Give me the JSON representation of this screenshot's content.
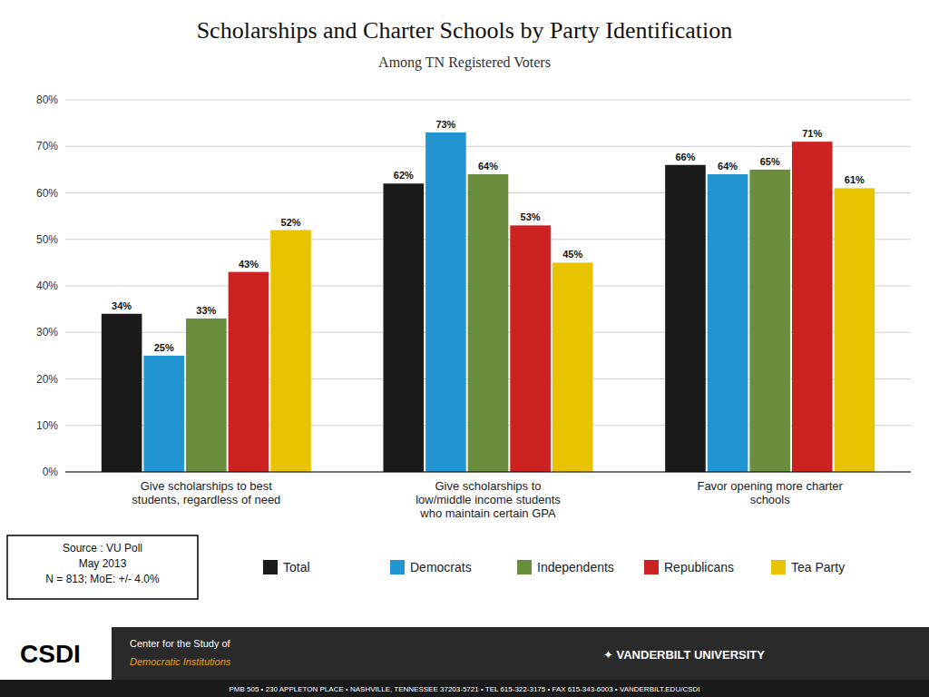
{
  "chart_data": {
    "type": "bar",
    "title": "Scholarships and Charter Schools by Party Identification",
    "subtitle": "Among TN Registered Voters",
    "categories": [
      "Give scholarships to best\nstudents, regardless of need",
      "Give scholarships to\nlow/middle income students\nwho maintain certain GPA",
      "Favor opening more charter\nschools"
    ],
    "series": [
      {
        "name": "Total",
        "color": "#1a1a1a",
        "values": [
          34,
          62,
          66
        ],
        "value_labels": [
          "34%",
          "62%",
          "66%"
        ]
      },
      {
        "name": "Democrats",
        "color": "#2196d3",
        "values": [
          25,
          73,
          64
        ],
        "value_labels": [
          "25%",
          "73%",
          "64%"
        ]
      },
      {
        "name": "Independents",
        "color": "#6b8e3e",
        "values": [
          33,
          64,
          65
        ],
        "value_labels": [
          "33%",
          "64%",
          "65%"
        ]
      },
      {
        "name": "Republicans",
        "color": "#cc2222",
        "values": [
          43,
          53,
          71
        ],
        "value_labels": [
          "43%",
          "53%",
          "71%"
        ]
      },
      {
        "name": "Tea Party",
        "color": "#e8c400",
        "values": [
          52,
          45,
          61
        ],
        "value_labels": [
          "52%",
          "45%",
          "61%"
        ]
      }
    ],
    "ylim": [
      0,
      80
    ],
    "yticks": [
      {
        "value": 0,
        "label": "0%"
      },
      {
        "value": 10,
        "label": "10%"
      },
      {
        "value": 20,
        "label": "20%"
      },
      {
        "value": 30,
        "label": "30%"
      },
      {
        "value": 40,
        "label": "40%"
      },
      {
        "value": 50,
        "label": "50%"
      },
      {
        "value": 60,
        "label": "60%"
      },
      {
        "value": 70,
        "label": "70%"
      },
      {
        "value": 80,
        "label": "80%"
      }
    ],
    "grid": true,
    "data_labels": true,
    "legend": "bottom",
    "annotations": [
      "Source : VU Poll\nMay 2013\nN = 813; MoE: +/- 4.0%",
      "CSDI",
      "Center for the Study of",
      "Democratic Institutions",
      "✦ VANDERBILT UNIVERSITY",
      "PMB 505 • 230 APPLETON PLACE • NASHVILLE, TENNESSEE 37203-5721 • TEL 615-322-3175 • FAX 615-343-6003 • VANDERBILT.EDU/CSDI"
    ]
  }
}
